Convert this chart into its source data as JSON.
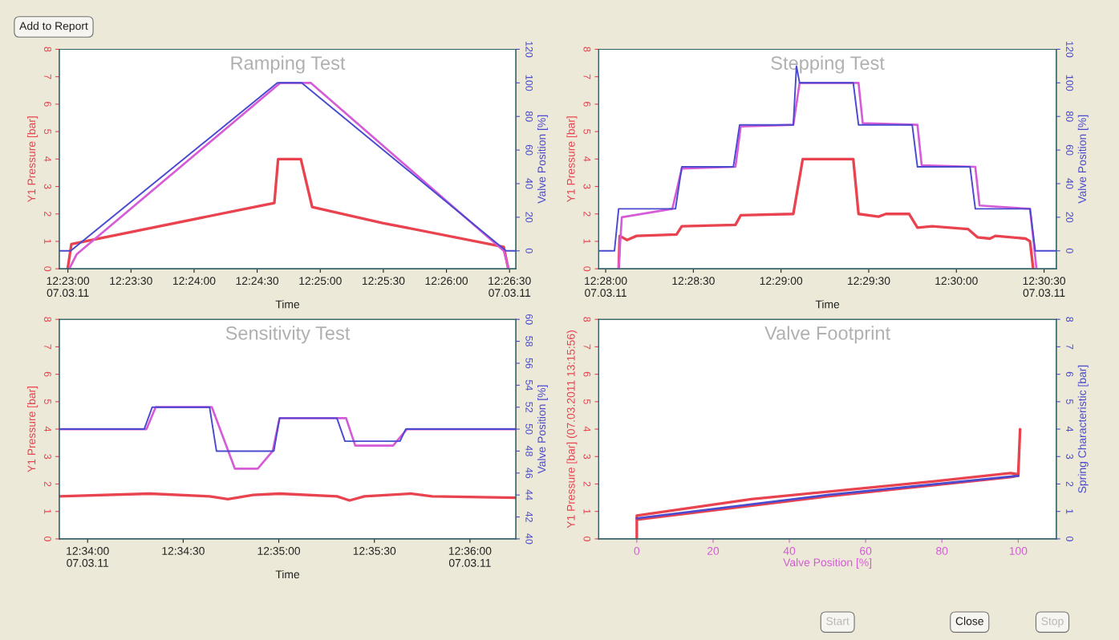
{
  "chart_data": [
    {
      "type": "line",
      "title": "Ramping Test",
      "xlabel": "Time",
      "ylabel": "Y1 Pressure [bar]",
      "y2label": "Valve Position [%]",
      "xlim": [
        12.3822,
        12.4425
      ],
      "xticks": [
        {
          "value": 12.383333,
          "label": "12:23:00\n07.03.11"
        },
        {
          "value": 12.391667,
          "label": "12:23:30"
        },
        {
          "value": 12.4,
          "label": "12:24:00"
        },
        {
          "value": 12.408333,
          "label": "12:24:30"
        },
        {
          "value": 12.416667,
          "label": "12:25:00"
        },
        {
          "value": 12.425,
          "label": "12:25:30"
        },
        {
          "value": 12.433333,
          "label": "12:26:00"
        },
        {
          "value": 12.441667,
          "label": "12:26:30\n07.03.11"
        }
      ],
      "ylim": [
        0,
        8
      ],
      "yticks": [
        0,
        1,
        2,
        3,
        4,
        5,
        6,
        7,
        8
      ],
      "y2lim": [
        -10.7,
        120
      ],
      "y2ticks": [
        0,
        20,
        40,
        60,
        80,
        100,
        120
      ],
      "series": [
        {
          "type": "line",
          "color": "#e8434f",
          "x": [
            12.3833,
            12.3838,
            12.4106,
            12.4111,
            12.4141,
            12.4156,
            12.4249,
            12.4409,
            12.4415
          ],
          "values": [
            0,
            0.9,
            2.4,
            4.0,
            4.0,
            2.25,
            1.67,
            0.8,
            0
          ]
        },
        {
          "type": "line",
          "axis": "y2",
          "color": "#d65bd6",
          "x": [
            12.3836,
            12.3845,
            12.4114,
            12.4154,
            12.4409,
            12.4415
          ],
          "values": [
            -10,
            -2,
            100,
            100,
            0,
            -10
          ]
        },
        {
          "type": "line",
          "axis": "y2",
          "color": "#4a4ad0",
          "x": [
            12.3822,
            12.3837,
            12.411,
            12.4142,
            12.4412,
            12.4425
          ],
          "values": [
            0,
            0,
            100,
            100,
            0,
            0
          ]
        }
      ]
    },
    {
      "type": "line",
      "title": "Stepping Test",
      "xlabel": "Time",
      "ylabel": "Y1 Pressure [bar]",
      "y2label": "Valve Position [%]",
      "xlim": [
        12.466,
        12.5095
      ],
      "xticks": [
        {
          "value": 12.466667,
          "label": "12:28:00\n07.03.11"
        },
        {
          "value": 12.475,
          "label": "12:28:30"
        },
        {
          "value": 12.483333,
          "label": "12:29:00"
        },
        {
          "value": 12.491667,
          "label": "12:29:30"
        },
        {
          "value": 12.5,
          "label": "12:30:00"
        },
        {
          "value": 12.508333,
          "label": "12:30:30\n07.03.11"
        }
      ],
      "ylim": [
        0,
        8
      ],
      "yticks": [
        0,
        1,
        2,
        3,
        4,
        5,
        6,
        7,
        8
      ],
      "y2lim": [
        -10.7,
        120
      ],
      "y2ticks": [
        0,
        20,
        40,
        60,
        80,
        100,
        120
      ],
      "series": [
        {
          "type": "line",
          "color": "#e8434f",
          "x": [
            12.4679,
            12.468,
            12.4687,
            12.4696,
            12.4734,
            12.4739,
            12.479,
            12.4795,
            12.4845,
            12.4854,
            12.4902,
            12.4907,
            12.4926,
            12.4933,
            12.4955,
            12.4963,
            12.4977,
            12.5011,
            12.502,
            12.5032,
            12.5037,
            12.5066,
            12.507,
            12.5073
          ],
          "values": [
            0,
            1.2,
            1.05,
            1.2,
            1.25,
            1.55,
            1.6,
            1.95,
            2.0,
            4.0,
            4.0,
            2.0,
            1.9,
            2.0,
            2.0,
            1.5,
            1.55,
            1.45,
            1.15,
            1.1,
            1.2,
            1.1,
            1.0,
            0
          ]
        },
        {
          "type": "line",
          "axis": "y2",
          "color": "#d65bd6",
          "x": [
            12.4679,
            12.4682,
            12.473,
            12.4739,
            12.479,
            12.4795,
            12.4845,
            12.4851,
            12.4907,
            12.4911,
            12.4963,
            12.4967,
            12.5018,
            12.5022,
            12.507,
            12.5076
          ],
          "values": [
            -10,
            20,
            25,
            49,
            50,
            74,
            75,
            100,
            100,
            76,
            75,
            51,
            50,
            27,
            25,
            -10
          ]
        },
        {
          "type": "line",
          "axis": "y2",
          "color": "#4a4ad0",
          "x": [
            12.466,
            12.4675,
            12.4679,
            12.4733,
            12.4739,
            12.4788,
            12.4794,
            12.4845,
            12.4848,
            12.4851,
            12.4902,
            12.4907,
            12.4958,
            12.4963,
            12.5013,
            12.5018,
            12.507,
            12.5075,
            12.5095
          ],
          "values": [
            0,
            0,
            25,
            25,
            50,
            50,
            75,
            75,
            110,
            100,
            100,
            75,
            75,
            50,
            50,
            25,
            25,
            0,
            0
          ]
        }
      ]
    },
    {
      "type": "line",
      "title": "Sensitivity Test",
      "xlabel": "Time",
      "ylabel": "Y1 Pressure [bar]",
      "y2label": "Valve Position [%]",
      "xlim": [
        12.5642,
        12.604
      ],
      "xticks": [
        {
          "value": 12.566667,
          "label": "12:34:00\n07.03.11"
        },
        {
          "value": 12.575,
          "label": "12:34:30"
        },
        {
          "value": 12.583333,
          "label": "12:35:00"
        },
        {
          "value": 12.591667,
          "label": "12:35:30"
        },
        {
          "value": 12.6,
          "label": "12:36:00\n07.03.11"
        }
      ],
      "ylim": [
        0,
        8
      ],
      "yticks": [
        0,
        1,
        2,
        3,
        4,
        5,
        6,
        7,
        8
      ],
      "y2lim": [
        40,
        60
      ],
      "y2ticks": [
        40,
        42,
        44,
        46,
        48,
        50,
        52,
        54,
        56,
        58,
        60
      ],
      "series": [
        {
          "type": "line",
          "color": "#e8434f",
          "x": [
            12.5642,
            12.5721,
            12.5773,
            12.5789,
            12.5811,
            12.5834,
            12.5884,
            12.5895,
            12.5908,
            12.5948,
            12.5967,
            12.604
          ],
          "values": [
            1.55,
            1.65,
            1.55,
            1.45,
            1.6,
            1.65,
            1.55,
            1.4,
            1.55,
            1.65,
            1.55,
            1.5
          ]
        },
        {
          "type": "line",
          "axis": "y2",
          "color": "#d65bd6",
          "x": [
            12.5642,
            12.5718,
            12.5726,
            12.5775,
            12.5795,
            12.5815,
            12.5828,
            12.5834,
            12.5892,
            12.59,
            12.5933,
            12.5945,
            12.604
          ],
          "values": [
            50,
            50,
            52,
            52,
            46.4,
            46.4,
            48,
            51,
            51,
            48.5,
            48.5,
            50,
            50
          ]
        },
        {
          "type": "line",
          "axis": "y2",
          "color": "#4a4ad0",
          "x": [
            12.5642,
            12.5716,
            12.5723,
            12.5773,
            12.5779,
            12.5829,
            12.5834,
            12.5884,
            12.5891,
            12.5939,
            12.5944,
            12.604
          ],
          "values": [
            50,
            50,
            52,
            52,
            48,
            48,
            51,
            51,
            48.9,
            48.9,
            50,
            50
          ]
        }
      ]
    },
    {
      "type": "line",
      "title": "Valve Footprint",
      "xlabel": "Valve Position [%]",
      "ylabel": "Y1 Pressure [bar] (07.03.2011 13:15:56)",
      "y2label": "Spring Characteristic [bar]",
      "xlim": [
        -10,
        110
      ],
      "xticks": [
        0,
        20,
        40,
        60,
        80,
        100
      ],
      "ylim": [
        0,
        8
      ],
      "yticks": [
        0,
        1,
        2,
        3,
        4,
        5,
        6,
        7,
        8
      ],
      "y2lim": [
        0,
        8
      ],
      "y2ticks": [
        0,
        1,
        2,
        3,
        4,
        5,
        6,
        7,
        8
      ],
      "series": [
        {
          "type": "line",
          "color": "#e8434f",
          "x": [
            0,
            0,
            30,
            78,
            98,
            100,
            100.5,
            100,
            98,
            50,
            0
          ],
          "values": [
            0,
            0.85,
            1.45,
            2.1,
            2.4,
            2.35,
            4.0,
            2.3,
            2.25,
            1.55,
            0.7
          ]
        },
        {
          "type": "line",
          "axis": "y2",
          "color": "#4a4ad0",
          "x": [
            0,
            50,
            100
          ],
          "values": [
            0.75,
            1.6,
            2.3
          ]
        }
      ]
    },
    {
      "type": "other",
      "annotations": [
        "Add to Report",
        "Start",
        "Close",
        "Stop"
      ]
    }
  ]
}
